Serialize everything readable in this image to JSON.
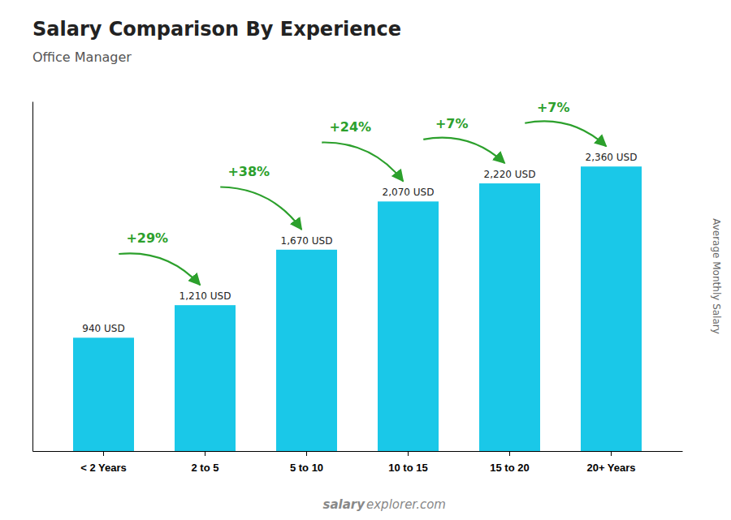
{
  "chart_data": {
    "type": "bar",
    "title": "Salary Comparison By Experience",
    "subtitle": "Office Manager",
    "categories": [
      "< 2 Years",
      "2 to 5",
      "5 to 10",
      "10 to 15",
      "15 to 20",
      "20+ Years"
    ],
    "values": [
      940,
      1210,
      1670,
      2070,
      2220,
      2360
    ],
    "value_labels": [
      "940 USD",
      "1,210 USD",
      "1,670 USD",
      "2,070 USD",
      "2,220 USD",
      "2,360 USD"
    ],
    "data_labels": true,
    "color": "#1ac8e8",
    "ylabel": "Average Monthly Salary",
    "ylim": [
      0,
      2900
    ],
    "tick_labels": "x",
    "grid": false,
    "annotations": [
      "+29%",
      "+38%",
      "+24%",
      "+7%",
      "+7%"
    ],
    "watermark": [
      "salary",
      "explorer.com"
    ]
  }
}
